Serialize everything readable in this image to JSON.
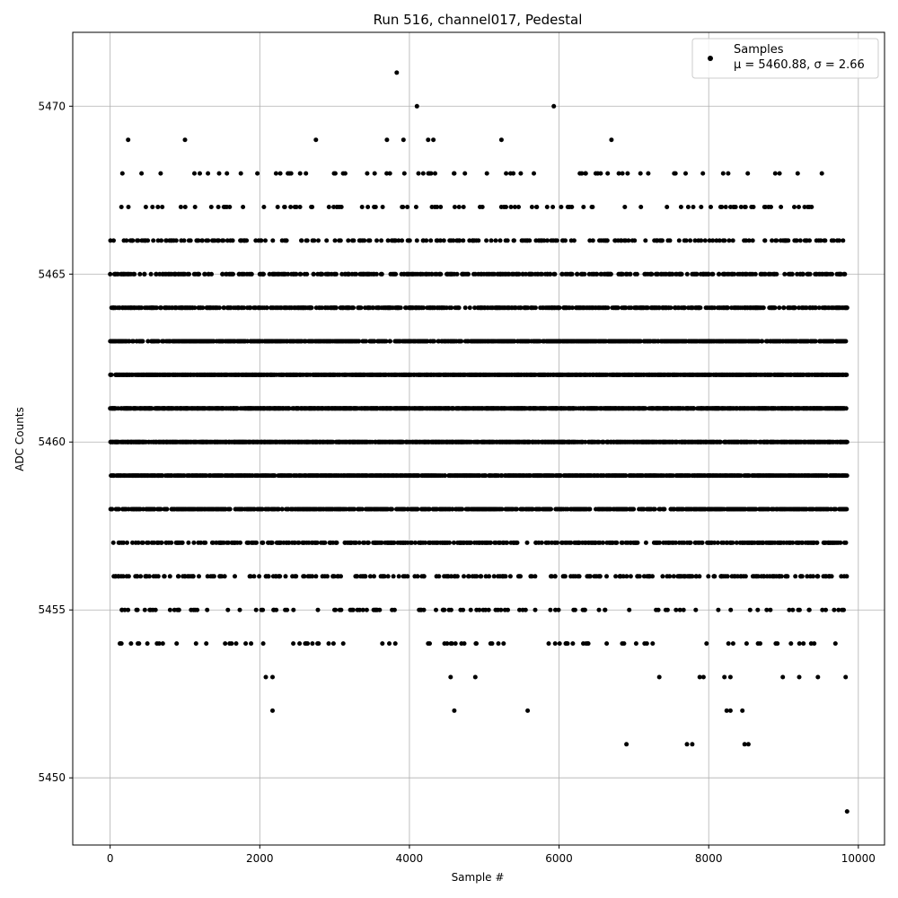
{
  "chart_data": {
    "type": "scatter",
    "title": "Run 516, channel017, Pedestal",
    "xlabel": "Sample #",
    "ylabel": "ADC Counts",
    "xlim": [
      -500,
      10350
    ],
    "ylim": [
      5448,
      5472.2
    ],
    "xticks": [
      0,
      2000,
      4000,
      6000,
      8000,
      10000
    ],
    "yticks": [
      5450,
      5455,
      5460,
      5465,
      5470
    ],
    "grid": true,
    "legend_position": "top-right",
    "marker_color": "#000000",
    "series": [
      {
        "name": "Samples",
        "legend_stats": "μ = 5460.88, σ = 2.66",
        "x_range": [
          0,
          9850
        ],
        "sample_count": 9850,
        "mean": 5460.88,
        "sigma": 2.66,
        "y_levels": [
          5449,
          5451,
          5452,
          5453,
          5454,
          5455,
          5456,
          5457,
          5458,
          5459,
          5460,
          5461,
          5462,
          5463,
          5464,
          5465,
          5466,
          5467,
          5468,
          5469,
          5470,
          5471
        ],
        "outliers": [
          {
            "x": 3830,
            "y": 5471
          },
          {
            "x": 4100,
            "y": 5470
          },
          {
            "x": 5930,
            "y": 5470
          },
          {
            "x": 240,
            "y": 5469
          },
          {
            "x": 1000,
            "y": 5469
          },
          {
            "x": 2750,
            "y": 5469
          },
          {
            "x": 3700,
            "y": 5469
          },
          {
            "x": 3920,
            "y": 5469
          },
          {
            "x": 4250,
            "y": 5469
          },
          {
            "x": 4320,
            "y": 5469
          },
          {
            "x": 5230,
            "y": 5469
          },
          {
            "x": 6700,
            "y": 5469
          },
          {
            "x": 6900,
            "y": 5451
          },
          {
            "x": 7710,
            "y": 5451
          },
          {
            "x": 7780,
            "y": 5451
          },
          {
            "x": 8480,
            "y": 5451
          },
          {
            "x": 8530,
            "y": 5451
          },
          {
            "x": 2170,
            "y": 5452
          },
          {
            "x": 4600,
            "y": 5452
          },
          {
            "x": 5580,
            "y": 5452
          },
          {
            "x": 8240,
            "y": 5452
          },
          {
            "x": 8290,
            "y": 5452
          },
          {
            "x": 8450,
            "y": 5452
          },
          {
            "x": 2080,
            "y": 5453
          },
          {
            "x": 2170,
            "y": 5453
          },
          {
            "x": 4550,
            "y": 5453
          },
          {
            "x": 4880,
            "y": 5453
          },
          {
            "x": 7340,
            "y": 5453
          },
          {
            "x": 7880,
            "y": 5453
          },
          {
            "x": 7930,
            "y": 5453
          },
          {
            "x": 8210,
            "y": 5453
          },
          {
            "x": 8290,
            "y": 5453
          },
          {
            "x": 8990,
            "y": 5453
          },
          {
            "x": 9210,
            "y": 5453
          },
          {
            "x": 9460,
            "y": 5453
          },
          {
            "x": 9830,
            "y": 5453
          },
          {
            "x": 9850,
            "y": 5449
          }
        ]
      }
    ]
  }
}
